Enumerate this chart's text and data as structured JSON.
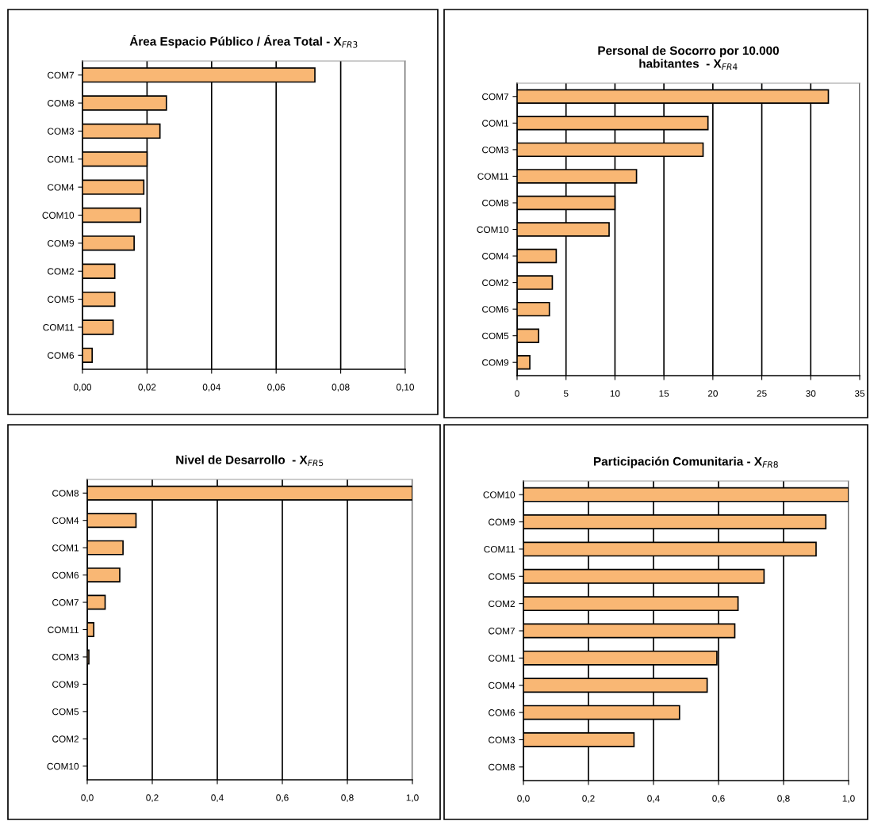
{
  "chart_data": [
    {
      "type": "bar",
      "orientation": "horizontal",
      "title": "Área Espacio Público / Área Total - X$_{FR3}$",
      "categories": [
        "COM7",
        "COM8",
        "COM3",
        "COM1",
        "COM4",
        "COM10",
        "COM9",
        "COM2",
        "COM5",
        "COM11",
        "COM6"
      ],
      "values": [
        0.072,
        0.026,
        0.024,
        0.02,
        0.019,
        0.018,
        0.016,
        0.01,
        0.01,
        0.0095,
        0.003
      ],
      "color": "#f9b774",
      "xlim": [
        0,
        0.1
      ],
      "xticks": [
        {
          "value": 0,
          "label": "0,00"
        },
        {
          "value": 0.02,
          "label": "0,02"
        },
        {
          "value": 0.04,
          "label": "0,04"
        },
        {
          "value": 0.06,
          "label": "0,06"
        },
        {
          "value": 0.08,
          "label": "0,08"
        },
        {
          "value": 0.1,
          "label": "0,10"
        }
      ],
      "grid": "x"
    },
    {
      "type": "bar",
      "orientation": "horizontal",
      "title": "Personal de Socorro por 10.000\nhabitantes  - X$_{FR4}$",
      "categories": [
        "COM7",
        "COM1",
        "COM3",
        "COM11",
        "COM8",
        "COM10",
        "COM4",
        "COM2",
        "COM6",
        "COM5",
        "COM9"
      ],
      "values": [
        31.8,
        19.5,
        19.0,
        12.2,
        10.0,
        9.4,
        4.0,
        3.6,
        3.3,
        2.2,
        1.3
      ],
      "color": "#f9b774",
      "xlim": [
        0,
        35
      ],
      "xticks": [
        0,
        5,
        10,
        15,
        20,
        25,
        30,
        35
      ],
      "grid": "x"
    },
    {
      "type": "bar",
      "orientation": "horizontal",
      "title": "Nivel de Desarrollo  - X$_{FR5}$",
      "categories": [
        "COM8",
        "COM4",
        "COM1",
        "COM6",
        "COM7",
        "COM11",
        "COM3",
        "COM9",
        "COM5",
        "COM2",
        "COM10"
      ],
      "values": [
        1.0,
        0.15,
        0.11,
        0.1,
        0.055,
        0.02,
        0.005,
        0,
        0,
        0,
        0
      ],
      "color": "#f9b774",
      "xlim": [
        0,
        1
      ],
      "xticks": [
        {
          "value": 0,
          "label": "0,0"
        },
        {
          "value": 0.2,
          "label": "0,2"
        },
        {
          "value": 0.4,
          "label": "0,4"
        },
        {
          "value": 0.6,
          "label": "0,6"
        },
        {
          "value": 0.8,
          "label": "0,8"
        },
        {
          "value": 1,
          "label": "1,0"
        }
      ],
      "grid": "x"
    },
    {
      "type": "bar",
      "orientation": "horizontal",
      "title": "Participación Comunitaria - X$_{FR8}$",
      "categories": [
        "COM10",
        "COM9",
        "COM11",
        "COM5",
        "COM2",
        "COM7",
        "COM1",
        "COM4",
        "COM6",
        "COM3",
        "COM8"
      ],
      "values": [
        1.0,
        0.93,
        0.9,
        0.74,
        0.66,
        0.65,
        0.595,
        0.565,
        0.48,
        0.34,
        0
      ],
      "color": "#f9b774",
      "xlim": [
        0,
        1
      ],
      "xticks": [
        {
          "value": 0,
          "label": "0,0"
        },
        {
          "value": 0.2,
          "label": "0,2"
        },
        {
          "value": 0.4,
          "label": "0,4"
        },
        {
          "value": 0.6,
          "label": "0,6"
        },
        {
          "value": 0.8,
          "label": "0,8"
        },
        {
          "value": 1,
          "label": "1,0"
        }
      ],
      "grid": "x"
    }
  ]
}
